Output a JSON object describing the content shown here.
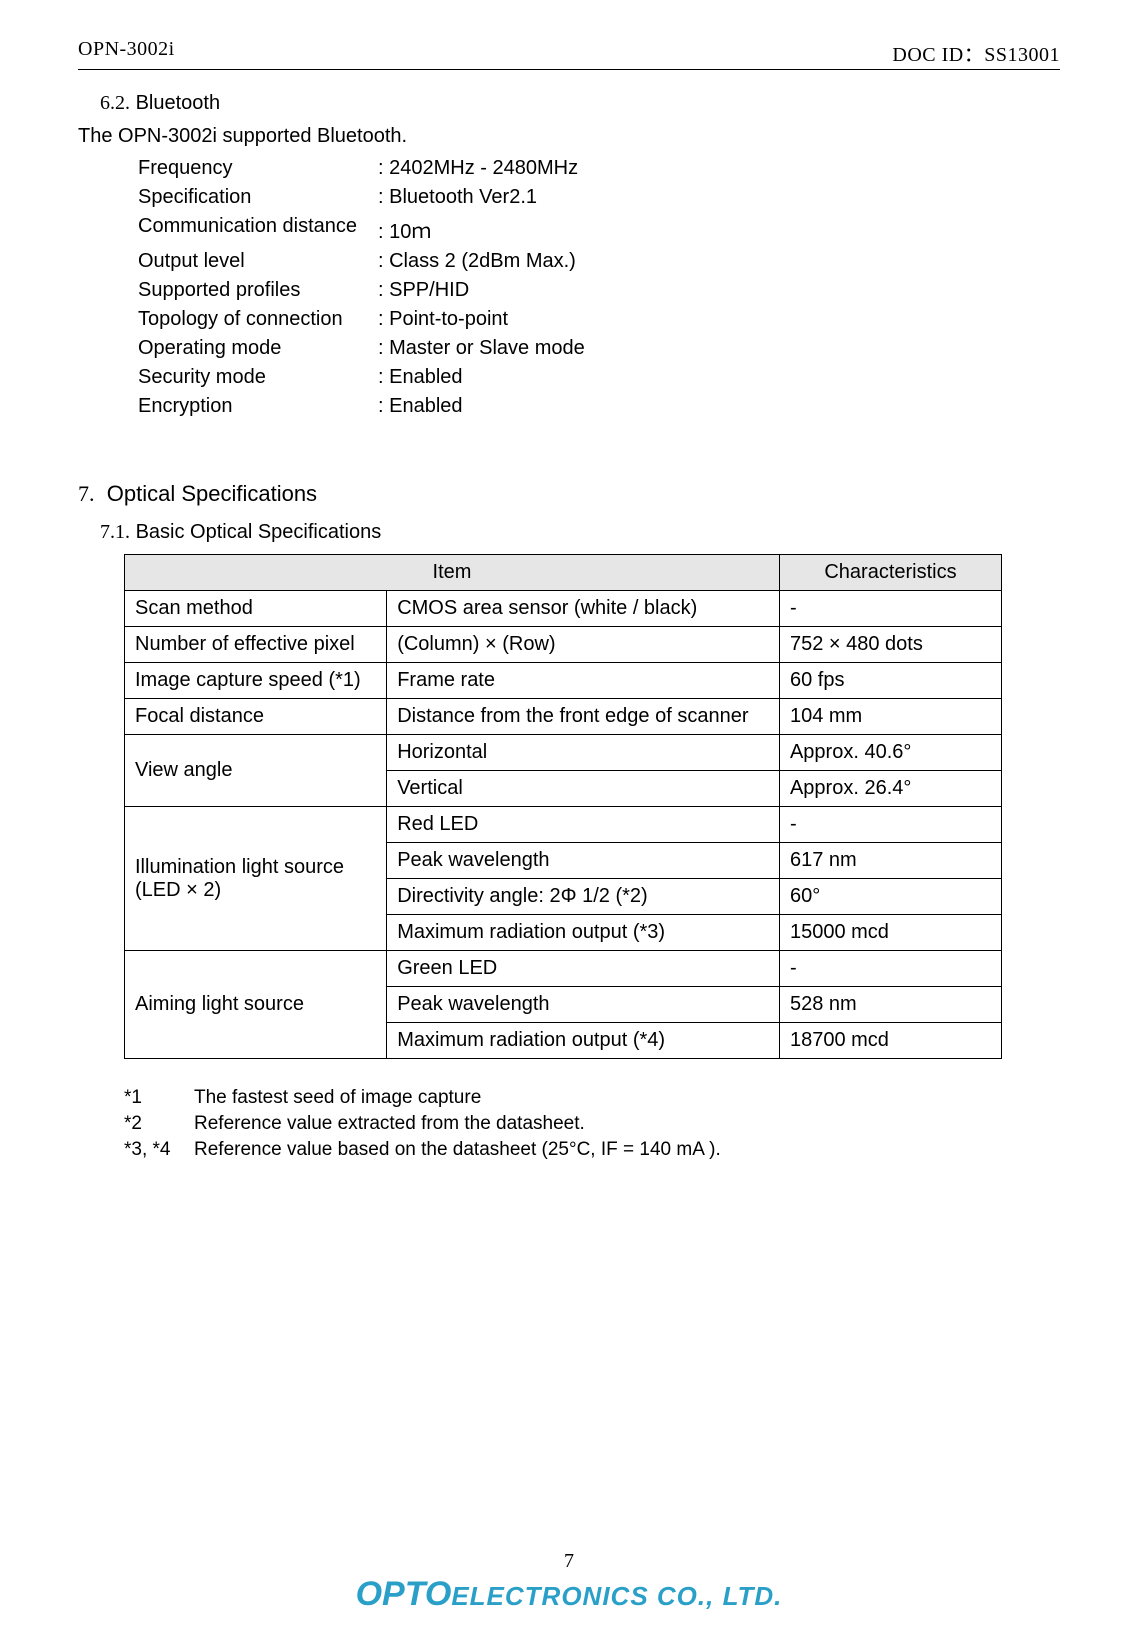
{
  "header": {
    "left": "OPN-3002i",
    "right": "DOC ID：SS13001"
  },
  "section62": {
    "number": "6.2.",
    "title": "Bluetooth",
    "intro": "The OPN-3002i supported Bluetooth.",
    "rows": [
      {
        "label": "Frequency",
        "value": ": 2402MHz - 2480MHz"
      },
      {
        "label": "Specification",
        "value": ": Bluetooth Ver2.1"
      },
      {
        "label": "Communication distance",
        "value": ": 10ｍ"
      },
      {
        "label": "Output level",
        "value": ": Class 2 (2dBm Max.)"
      },
      {
        "label": "Supported profiles",
        "value": ": SPP/HID"
      },
      {
        "label": "Topology of connection",
        "value": ": Point-to-point"
      },
      {
        "label": "Operating mode",
        "value": ": Master or Slave mode"
      },
      {
        "label": "Security mode",
        "value": ": Enabled"
      },
      {
        "label": "Encryption",
        "value": ": Enabled"
      }
    ]
  },
  "section7": {
    "number": "7.",
    "title": "Optical Specifications"
  },
  "section71": {
    "number": "7.1.",
    "title": "Basic Optical Specifications"
  },
  "table": {
    "headers": {
      "h1": "Item",
      "h2": "Characteristics"
    },
    "rows": {
      "r1": {
        "c1": "Scan method",
        "c2": "CMOS area sensor (white / black)",
        "c3": "-"
      },
      "r2": {
        "c1": "Number of effective pixel",
        "c2": "(Column) × (Row)",
        "c3": "752 × 480 dots"
      },
      "r3": {
        "c1": "Image capture speed (*1)",
        "c2": "Frame rate",
        "c3": "60 fps"
      },
      "r4": {
        "c1": "Focal distance",
        "c2": "Distance from the front edge of scanner",
        "c3": "104 mm"
      },
      "r5": {
        "c1": "View angle",
        "c2": "Horizontal",
        "c3": "Approx. 40.6°"
      },
      "r6": {
        "c2": "Vertical",
        "c3": "Approx. 26.4°"
      },
      "r7": {
        "c1": "Illumination light source (LED × 2)",
        "c2": "Red LED",
        "c3": "-"
      },
      "r8": {
        "c2": "Peak wavelength",
        "c3": "617 nm"
      },
      "r9": {
        "c2": "Directivity angle: 2Φ 1/2 (*2)",
        "c3": "60°"
      },
      "r10": {
        "c2": "Maximum radiation output (*3)",
        "c3": "15000 mcd"
      },
      "r11": {
        "c1": "Aiming light source",
        "c2": "Green LED",
        "c3": "-"
      },
      "r12": {
        "c2": "Peak wavelength",
        "c3": "528 nm"
      },
      "r13": {
        "c2": "Maximum radiation output (*4)",
        "c3": "18700 mcd"
      }
    }
  },
  "footnotes": [
    {
      "key": "*1",
      "text": "The fastest seed of image capture"
    },
    {
      "key": "*2",
      "text": "Reference value extracted from the datasheet."
    },
    {
      "key": "*3, *4",
      "text": "Reference value based on the datasheet (25°C, IF = 140 mA )."
    }
  ],
  "footer": {
    "page": "7",
    "logo_opto": "OPTO",
    "logo_rest": "ELECTRONICS CO., LTD."
  }
}
